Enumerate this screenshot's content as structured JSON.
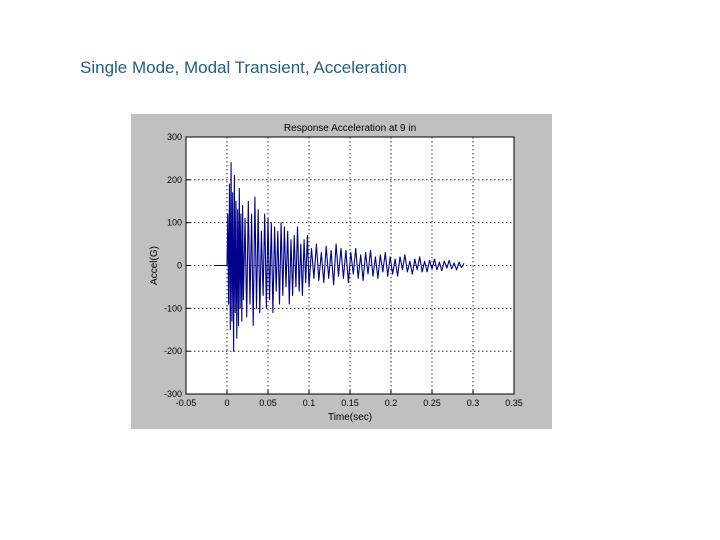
{
  "slide": {
    "title": "Single Mode, Modal Transient, Acceleration"
  },
  "colors": {
    "figure_background": "#c0c0c0",
    "plot_background": "#ffffff",
    "grid": "#000000",
    "series": "#00008b"
  },
  "chart_data": {
    "type": "line",
    "title": "Response Acceleration at 9 in",
    "xlabel": "Time(sec)",
    "ylabel": "Accel(G)",
    "xlim": [
      -0.05,
      0.35
    ],
    "ylim": [
      -300,
      300
    ],
    "xticks": [
      -0.05,
      0,
      0.05,
      0.1,
      0.15,
      0.2,
      0.25,
      0.3,
      0.35
    ],
    "yticks": [
      -300,
      -200,
      -100,
      0,
      100,
      200,
      300
    ],
    "xtick_labels": [
      "-0.05",
      "0",
      "0.05",
      "0.1",
      "0.15",
      "0.2",
      "0.25",
      "0.3",
      "0.35"
    ],
    "ytick_labels": [
      "-300",
      "-200",
      "-100",
      "0",
      "100",
      "200",
      "300"
    ],
    "grid": true,
    "grid_style": "dotted",
    "series": [
      {
        "color": "#00008b",
        "x": [
          -0.015,
          0.0,
          0.001,
          0.002,
          0.003,
          0.004,
          0.005,
          0.006,
          0.007,
          0.008,
          0.009,
          0.01,
          0.011,
          0.012,
          0.013,
          0.014,
          0.015,
          0.016,
          0.017,
          0.018,
          0.019,
          0.02,
          0.022,
          0.024,
          0.026,
          0.028,
          0.03,
          0.032,
          0.034,
          0.036,
          0.038,
          0.04,
          0.042,
          0.044,
          0.046,
          0.048,
          0.05,
          0.052,
          0.054,
          0.056,
          0.058,
          0.06,
          0.062,
          0.064,
          0.066,
          0.068,
          0.07,
          0.072,
          0.074,
          0.076,
          0.078,
          0.08,
          0.082,
          0.084,
          0.086,
          0.088,
          0.09,
          0.092,
          0.094,
          0.096,
          0.098,
          0.1,
          0.103,
          0.106,
          0.109,
          0.112,
          0.115,
          0.118,
          0.121,
          0.124,
          0.127,
          0.13,
          0.133,
          0.136,
          0.139,
          0.142,
          0.145,
          0.148,
          0.151,
          0.154,
          0.157,
          0.16,
          0.163,
          0.166,
          0.169,
          0.172,
          0.175,
          0.178,
          0.181,
          0.184,
          0.187,
          0.19,
          0.193,
          0.196,
          0.199,
          0.202,
          0.205,
          0.208,
          0.211,
          0.214,
          0.217,
          0.22,
          0.223,
          0.226,
          0.229,
          0.232,
          0.235,
          0.238,
          0.241,
          0.244,
          0.247,
          0.25,
          0.253,
          0.256,
          0.259,
          0.262,
          0.265,
          0.268,
          0.271,
          0.274,
          0.277,
          0.28,
          0.283,
          0.286,
          0.289
        ],
        "y": [
          0,
          0,
          120,
          -90,
          190,
          -150,
          240,
          -130,
          170,
          -200,
          210,
          -110,
          150,
          -170,
          130,
          -140,
          180,
          -100,
          120,
          -130,
          140,
          -80,
          110,
          -120,
          150,
          -90,
          120,
          -140,
          160,
          -100,
          130,
          -110,
          80,
          -70,
          120,
          -100,
          110,
          -80,
          100,
          -110,
          90,
          -60,
          80,
          -90,
          100,
          -70,
          90,
          -50,
          80,
          -90,
          60,
          -70,
          70,
          -50,
          90,
          -60,
          50,
          -70,
          60,
          -40,
          70,
          -50,
          40,
          -30,
          50,
          -35,
          30,
          -40,
          45,
          -30,
          35,
          -45,
          50,
          -25,
          40,
          -30,
          35,
          -40,
          30,
          -20,
          40,
          -30,
          25,
          -35,
          30,
          -20,
          35,
          -25,
          20,
          -30,
          25,
          -15,
          30,
          -25,
          20,
          -20,
          15,
          -25,
          20,
          -10,
          25,
          -15,
          10,
          -20,
          15,
          -10,
          20,
          -15,
          10,
          -15,
          12,
          -8,
          15,
          -10,
          8,
          -12,
          10,
          -6,
          12,
          -8,
          6,
          -10,
          8,
          -5,
          5
        ]
      }
    ]
  }
}
